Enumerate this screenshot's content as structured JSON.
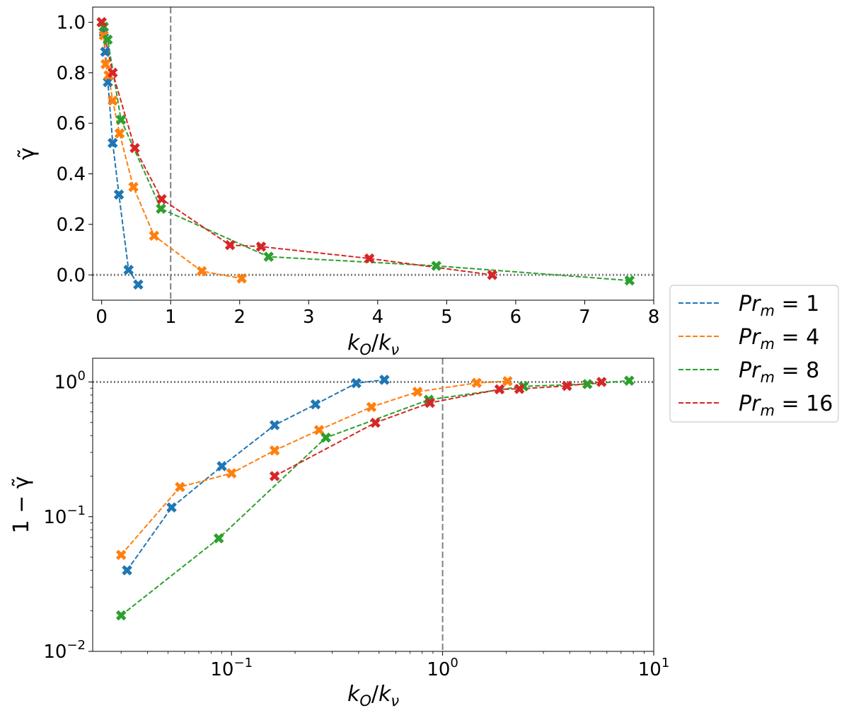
{
  "chart_data": [
    {
      "type": "line",
      "scale": "linear",
      "xlabel": "k_O/k_ν",
      "ylabel": "γ̃",
      "xlim": [
        -0.13,
        8.0
      ],
      "ylim": [
        -0.1,
        1.06
      ],
      "xticks": [
        0,
        1,
        2,
        3,
        4,
        5,
        6,
        7,
        8
      ],
      "yticks": [
        0.0,
        0.2,
        0.4,
        0.6,
        0.8,
        1.0
      ],
      "xtick_labels": [
        "0",
        "1",
        "2",
        "3",
        "4",
        "5",
        "6",
        "7",
        "8"
      ],
      "ytick_labels": [
        "0.0",
        "0.2",
        "0.4",
        "0.6",
        "0.8",
        "1.0"
      ],
      "reference_lines": {
        "vertical_x": 1,
        "horizontal_y": 0
      },
      "series": [
        {
          "name": "Pr_m = 1",
          "color": "#1f77b4",
          "x": [
            0.0,
            0.032,
            0.052,
            0.09,
            0.16,
            0.25,
            0.39,
            0.53
          ],
          "y": [
            1.0,
            0.96,
            0.883,
            0.763,
            0.522,
            0.318,
            0.02,
            -0.038
          ]
        },
        {
          "name": "Pr_m = 4",
          "color": "#ff7f0e",
          "x": [
            0.0,
            0.03,
            0.057,
            0.1,
            0.16,
            0.26,
            0.46,
            0.76,
            1.45,
            2.03
          ],
          "y": [
            1.0,
            0.948,
            0.834,
            0.79,
            0.69,
            0.56,
            0.348,
            0.155,
            0.015,
            -0.014
          ]
        },
        {
          "name": "Pr_m = 8",
          "color": "#2ca02c",
          "x": [
            0.0,
            0.03,
            0.087,
            0.28,
            0.86,
            2.42,
            4.85,
            7.65
          ],
          "y": [
            1.0,
            0.982,
            0.931,
            0.614,
            0.262,
            0.072,
            0.036,
            -0.022
          ]
        },
        {
          "name": "Pr_m = 16",
          "color": "#d62728",
          "x": [
            0.0,
            0.16,
            0.48,
            0.87,
            1.86,
            2.31,
            3.88,
            5.66
          ],
          "y": [
            1.0,
            0.8,
            0.502,
            0.3,
            0.118,
            0.112,
            0.065,
            0.0
          ]
        }
      ]
    },
    {
      "type": "line",
      "scale": "log",
      "xlabel": "k_O/k_ν",
      "ylabel": "1 − γ̃",
      "xlim": [
        0.022,
        10
      ],
      "ylim": [
        0.01,
        1.5
      ],
      "xticks": [
        0.1,
        1,
        10
      ],
      "yticks": [
        0.01,
        0.1,
        1
      ],
      "xtick_labels": [
        {
          "base": "10",
          "exp": "−1"
        },
        {
          "base": "10",
          "exp": "0"
        },
        {
          "base": "10",
          "exp": "1"
        }
      ],
      "ytick_labels": [
        {
          "base": "10",
          "exp": "−2"
        },
        {
          "base": "10",
          "exp": "−1"
        },
        {
          "base": "10",
          "exp": "0"
        }
      ],
      "reference_lines": {
        "vertical_x": 1,
        "horizontal_y": 1
      },
      "series": [
        {
          "name": "Pr_m = 1",
          "color": "#1f77b4",
          "x": [
            0.032,
            0.052,
            0.09,
            0.16,
            0.25,
            0.39,
            0.53
          ],
          "y": [
            0.04,
            0.117,
            0.237,
            0.478,
            0.682,
            0.98,
            1.038
          ]
        },
        {
          "name": "Pr_m = 4",
          "color": "#ff7f0e",
          "x": [
            0.03,
            0.057,
            0.1,
            0.16,
            0.26,
            0.46,
            0.76,
            1.45,
            2.03
          ],
          "y": [
            0.052,
            0.166,
            0.21,
            0.31,
            0.44,
            0.652,
            0.845,
            0.985,
            1.014
          ]
        },
        {
          "name": "Pr_m = 8",
          "color": "#2ca02c",
          "x": [
            0.03,
            0.087,
            0.28,
            0.86,
            2.42,
            4.85,
            7.65
          ],
          "y": [
            0.0185,
            0.069,
            0.386,
            0.738,
            0.928,
            0.964,
            1.022
          ]
        },
        {
          "name": "Pr_m = 16",
          "color": "#d62728",
          "x": [
            0.16,
            0.48,
            0.87,
            1.86,
            2.31,
            3.88,
            5.66
          ],
          "y": [
            0.2,
            0.498,
            0.7,
            0.882,
            0.888,
            0.935,
            1.0
          ]
        }
      ]
    }
  ],
  "legend": {
    "placement": "right",
    "entries": [
      {
        "symbol": "Pr",
        "sub": "m",
        "value": "= 1",
        "color": "#1f77b4"
      },
      {
        "symbol": "Pr",
        "sub": "m",
        "value": "= 4",
        "color": "#ff7f0e"
      },
      {
        "symbol": "Pr",
        "sub": "m",
        "value": "= 8",
        "color": "#2ca02c"
      },
      {
        "symbol": "Pr",
        "sub": "m",
        "value": "= 16",
        "color": "#d62728"
      }
    ]
  },
  "colors": {
    "reference_line": "#808080",
    "axes": "#000000"
  }
}
